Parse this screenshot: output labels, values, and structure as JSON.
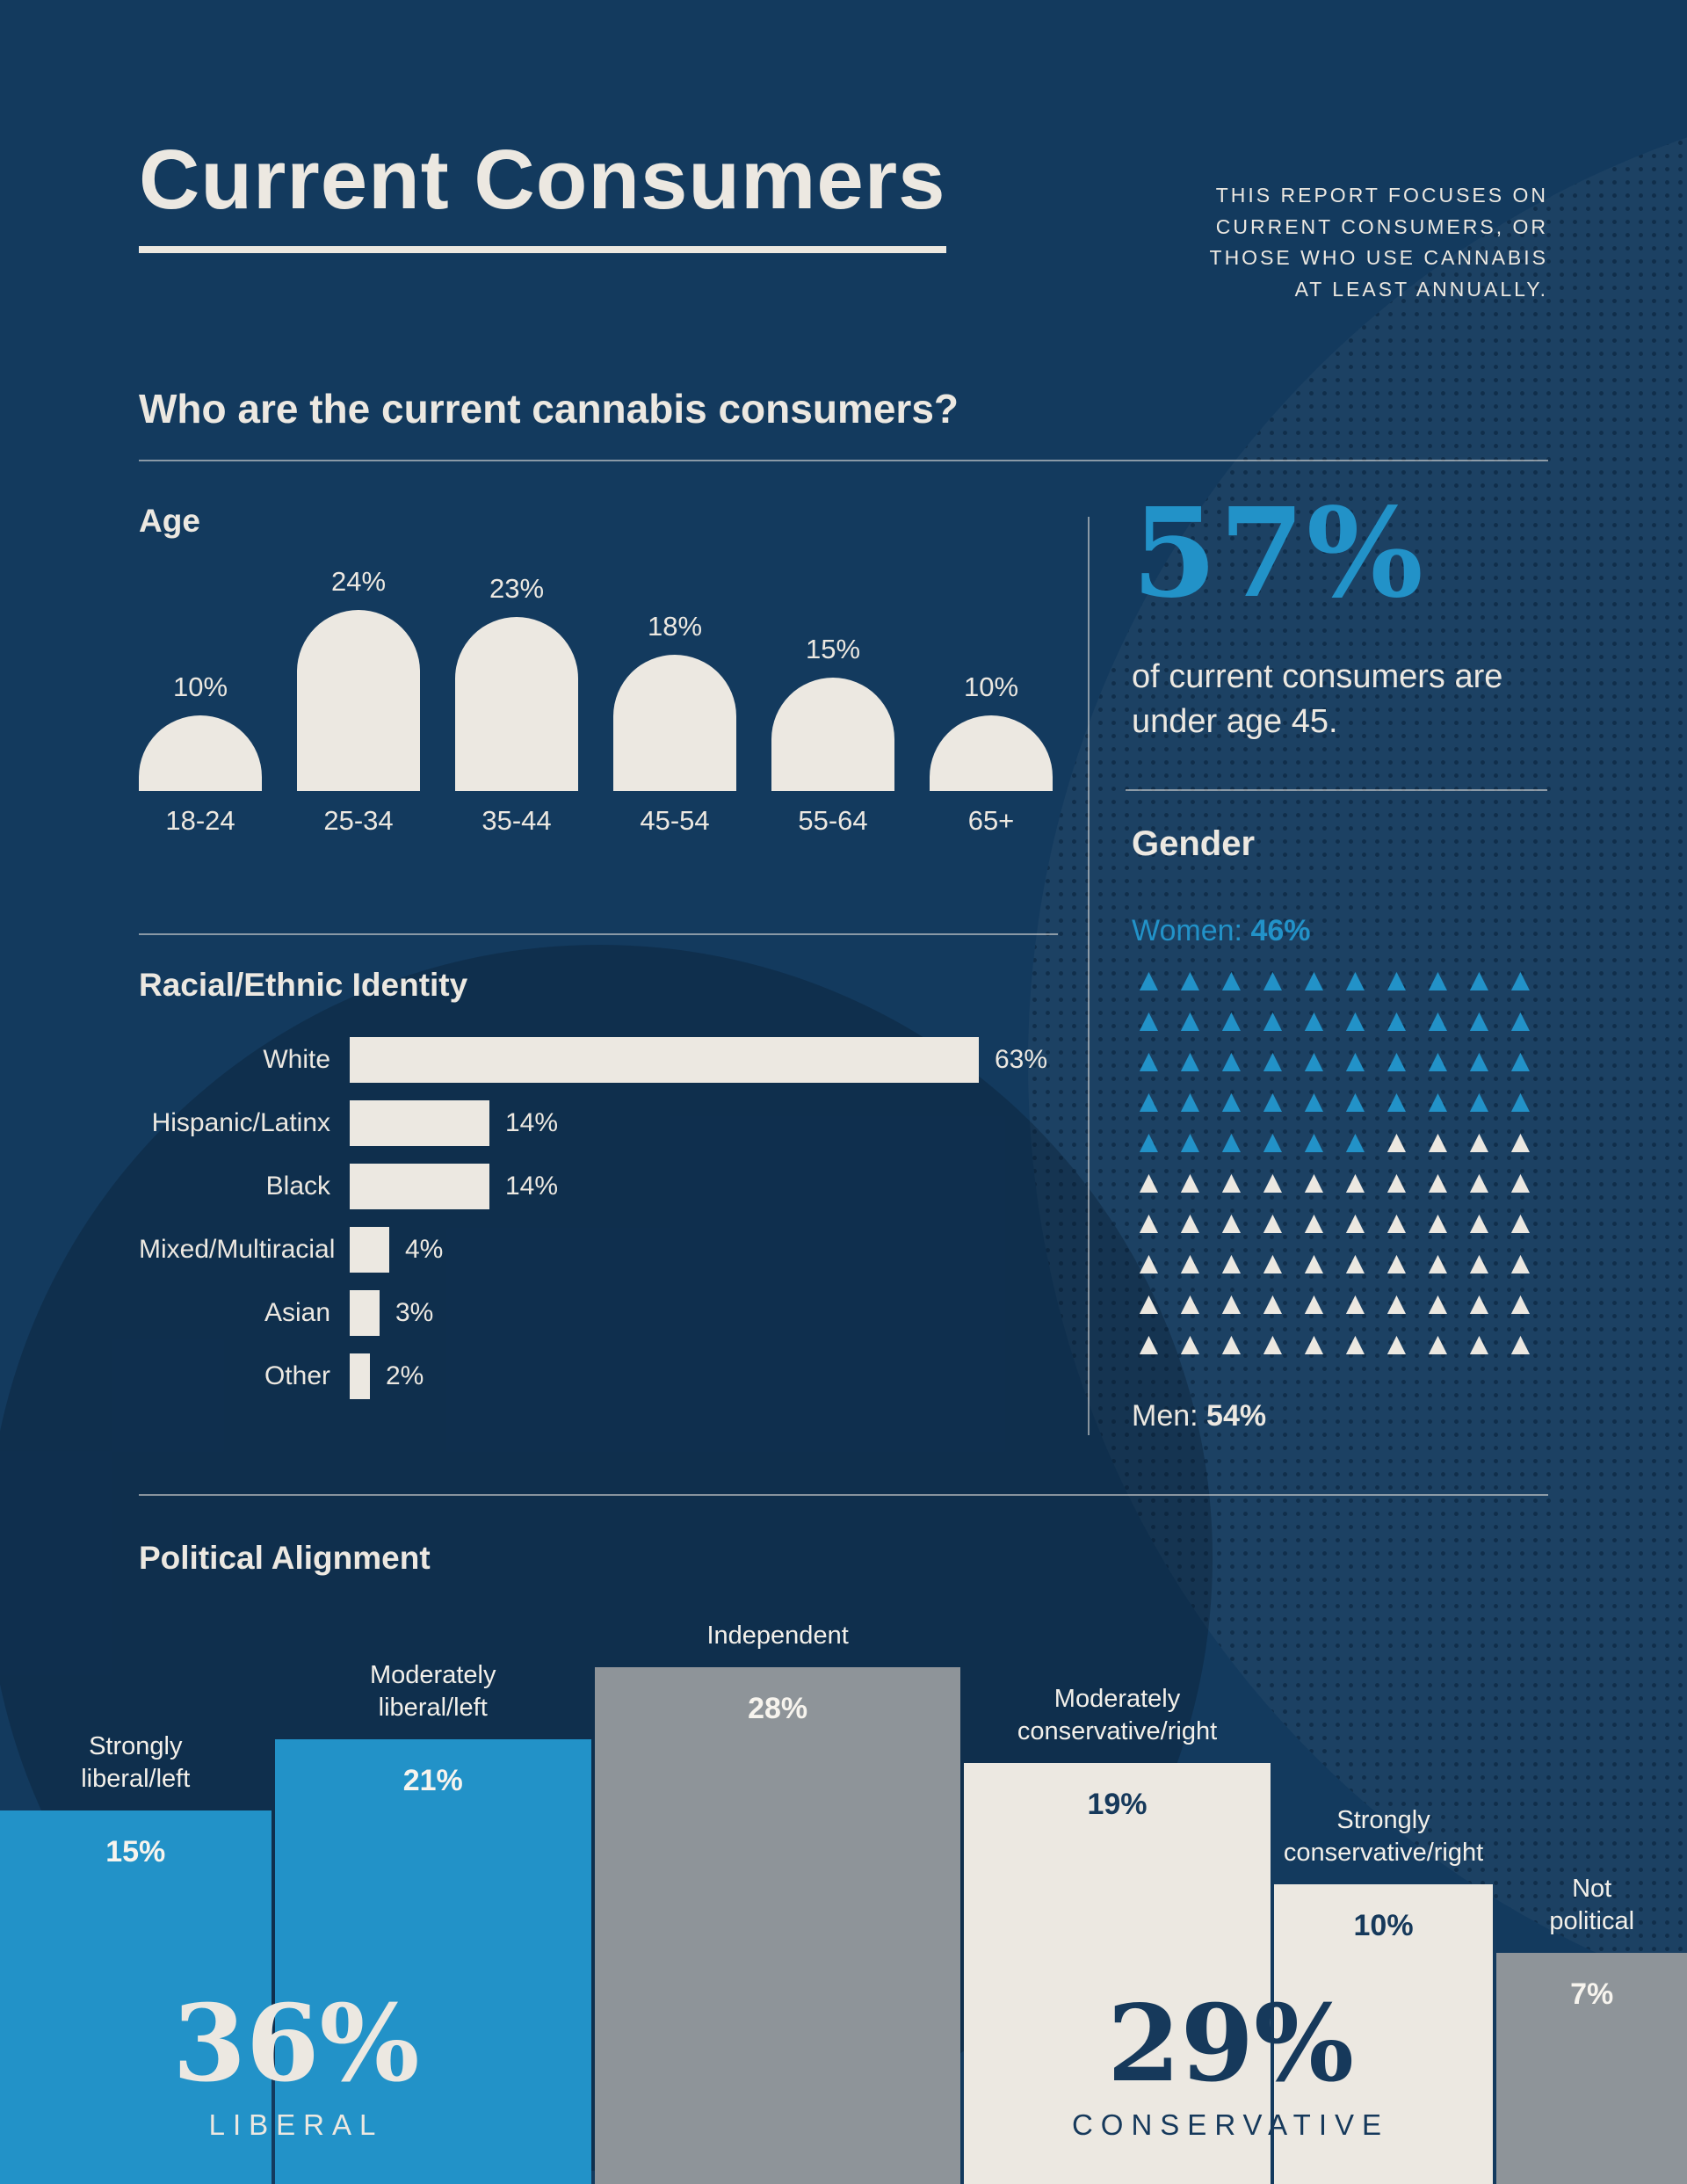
{
  "page": {
    "title": "Current Consumers",
    "report_note": "THIS REPORT FOCUSES ON\nCURRENT CONSUMERS, OR\nTHOSE WHO USE CANNABIS\nAT LEAST ANNUALLY.",
    "question": "Who are the current cannabis consumers?"
  },
  "stat": {
    "value": "57%",
    "text": "of current consumers are under age 45."
  },
  "gender": {
    "heading": "Gender",
    "women_label": "Women:",
    "women_value": "46%",
    "men_label": "Men:",
    "men_value": "54%"
  },
  "colors": {
    "background": "#133A5E",
    "cream": "#ECE8E1",
    "blue": "#2292C8",
    "gray": "#8E9499",
    "navy_text": "#16395B"
  },
  "chart_data": [
    {
      "id": "age",
      "type": "bar",
      "title": "Age",
      "categories": [
        "18-24",
        "25-34",
        "35-44",
        "45-54",
        "55-64",
        "65+"
      ],
      "values": [
        10,
        24,
        23,
        18,
        15,
        10
      ],
      "unit": "%",
      "bar_shape": "rounded-top-arch",
      "ylim": [
        0,
        24
      ]
    },
    {
      "id": "race",
      "type": "bar",
      "title": "Racial/Ethnic Identity",
      "orientation": "horizontal",
      "categories": [
        "White",
        "Hispanic/Latinx",
        "Black",
        "Mixed/Multiracial",
        "Asian",
        "Other"
      ],
      "values": [
        63,
        14,
        14,
        4,
        3,
        2
      ],
      "unit": "%",
      "xlim": [
        0,
        63
      ]
    },
    {
      "id": "gender",
      "type": "pictogram",
      "title": "Gender",
      "icon": "triangle-person",
      "total_icons": 100,
      "icons_per_row": 10,
      "series": [
        {
          "name": "Women",
          "value": 46,
          "color": "#2292C8"
        },
        {
          "name": "Men",
          "value": 54,
          "color": "#ECE8E1"
        }
      ]
    },
    {
      "id": "political",
      "type": "bar",
      "title": "Political Alignment",
      "categories": [
        "Strongly\nliberal/left",
        "Moderately\nliberal/left",
        "Independent",
        "Moderately\nconservative/right",
        "Strongly\nconservative/right",
        "Not\npolitical"
      ],
      "values": [
        15,
        21,
        28,
        19,
        10,
        7
      ],
      "unit": "%",
      "bar_colors": [
        "blue",
        "blue",
        "gray",
        "cream",
        "cream",
        "gray"
      ],
      "summary": [
        {
          "value": "36%",
          "label": "LIBERAL",
          "side": "liberal"
        },
        {
          "value": "29%",
          "label": "CONSERVATIVE",
          "side": "conservative"
        }
      ]
    }
  ]
}
